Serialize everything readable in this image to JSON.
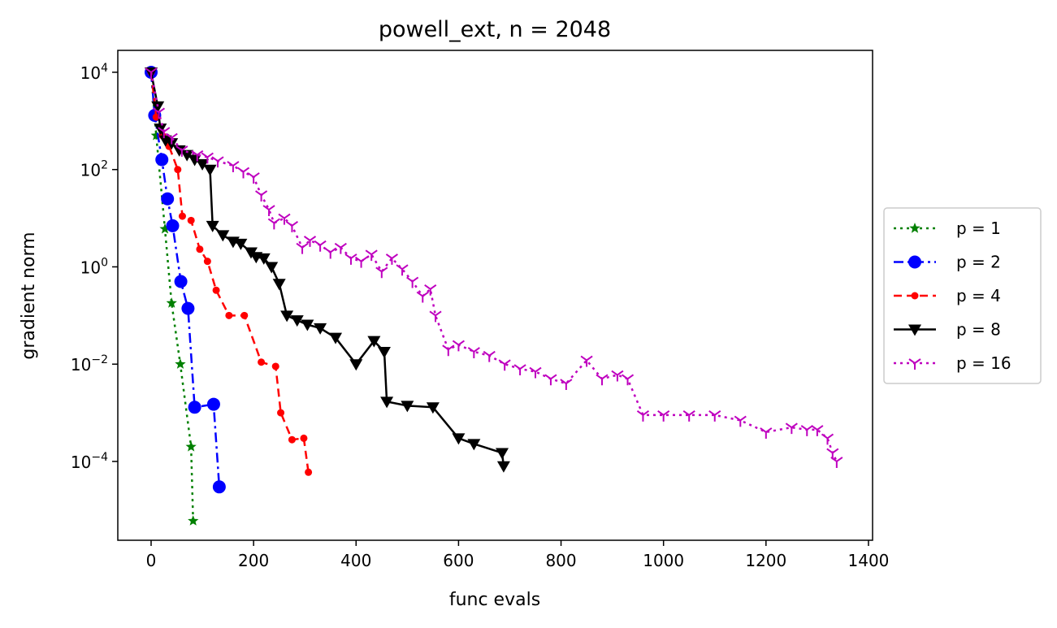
{
  "chart_data": {
    "type": "line",
    "title": "powell_ext, n = 2048",
    "xlabel": "func evals",
    "ylabel": "gradient norm",
    "xlim": [
      -65,
      1408
    ],
    "ylim_log10": [
      -5.62,
      4.45
    ],
    "yscale": "log",
    "grid": false,
    "legend_placement": "right-outside",
    "x_ticks": [
      {
        "value": 0,
        "label": "0"
      },
      {
        "value": 200,
        "label": "200"
      },
      {
        "value": 400,
        "label": "400"
      },
      {
        "value": 600,
        "label": "600"
      },
      {
        "value": 800,
        "label": "800"
      },
      {
        "value": 1000,
        "label": "1000"
      },
      {
        "value": 1200,
        "label": "1200"
      },
      {
        "value": 1400,
        "label": "1400"
      }
    ],
    "y_ticks": [
      {
        "exp": 4,
        "base": "10",
        "sup": "4"
      },
      {
        "exp": 2,
        "base": "10",
        "sup": "2"
      },
      {
        "exp": 0,
        "base": "10",
        "sup": "0"
      },
      {
        "exp": -2,
        "base": "10",
        "sup": "−2"
      },
      {
        "exp": -4,
        "base": "10",
        "sup": "−4"
      }
    ],
    "series": [
      {
        "name": "p = 1",
        "color": "#008000",
        "dash": "dotted",
        "marker": "star",
        "points": [
          [
            0,
            10000
          ],
          [
            10,
            500
          ],
          [
            27,
            6
          ],
          [
            40,
            0.18
          ],
          [
            57,
            0.01
          ],
          [
            78,
            0.0002
          ],
          [
            82,
            6e-06
          ]
        ]
      },
      {
        "name": "p = 2",
        "color": "#0000ff",
        "dash": "dashdot",
        "marker": "circle",
        "points": [
          [
            0,
            10000
          ],
          [
            7,
            1300
          ],
          [
            21,
            160
          ],
          [
            32,
            25
          ],
          [
            42,
            7
          ],
          [
            58,
            0.5
          ],
          [
            72,
            0.14
          ],
          [
            85,
            0.0013
          ],
          [
            122,
            0.0015
          ],
          [
            133,
            3e-05
          ]
        ]
      },
      {
        "name": "p = 4",
        "color": "#ff0000",
        "dash": "dashed",
        "marker": "dot",
        "points": [
          [
            0,
            10000
          ],
          [
            10,
            1200
          ],
          [
            22,
            500
          ],
          [
            35,
            300
          ],
          [
            52,
            100
          ],
          [
            61,
            11
          ],
          [
            78,
            9
          ],
          [
            95,
            2.3
          ],
          [
            110,
            1.3
          ],
          [
            127,
            0.33
          ],
          [
            152,
            0.1
          ],
          [
            182,
            0.1
          ],
          [
            215,
            0.011
          ],
          [
            243,
            0.009
          ],
          [
            253,
            0.001
          ],
          [
            275,
            0.00028
          ],
          [
            298,
            0.0003
          ],
          [
            307,
            6e-05
          ]
        ]
      },
      {
        "name": "p = 8",
        "color": "#000000",
        "dash": "solid",
        "marker": "triangle-down",
        "points": [
          [
            0,
            10000
          ],
          [
            13,
            2000
          ],
          [
            18,
            700
          ],
          [
            28,
            400
          ],
          [
            40,
            350
          ],
          [
            55,
            250
          ],
          [
            70,
            200
          ],
          [
            85,
            160
          ],
          [
            100,
            130
          ],
          [
            115,
            100
          ],
          [
            120,
            7
          ],
          [
            140,
            4.5
          ],
          [
            160,
            3.3
          ],
          [
            175,
            3
          ],
          [
            195,
            2
          ],
          [
            205,
            1.6
          ],
          [
            220,
            1.5
          ],
          [
            235,
            1
          ],
          [
            250,
            0.45
          ],
          [
            265,
            0.1
          ],
          [
            285,
            0.08
          ],
          [
            305,
            0.065
          ],
          [
            330,
            0.055
          ],
          [
            360,
            0.035
          ],
          [
            400,
            0.01
          ],
          [
            435,
            0.03
          ],
          [
            455,
            0.018
          ],
          [
            460,
            0.0017
          ],
          [
            500,
            0.0014
          ],
          [
            550,
            0.0013
          ],
          [
            600,
            0.0003
          ],
          [
            630,
            0.00023
          ],
          [
            685,
            0.00015
          ],
          [
            688,
            8e-05
          ]
        ]
      },
      {
        "name": "p = 16",
        "color": "#bf00bf",
        "dash": "dotted",
        "marker": "tri-down",
        "points": [
          [
            0,
            10000
          ],
          [
            15,
            1500
          ],
          [
            25,
            600
          ],
          [
            40,
            450
          ],
          [
            60,
            250
          ],
          [
            90,
            200
          ],
          [
            110,
            180
          ],
          [
            130,
            150
          ],
          [
            160,
            120
          ],
          [
            180,
            90
          ],
          [
            200,
            70
          ],
          [
            215,
            30
          ],
          [
            230,
            15
          ],
          [
            240,
            8
          ],
          [
            260,
            10
          ],
          [
            275,
            7
          ],
          [
            295,
            2.5
          ],
          [
            310,
            3.5
          ],
          [
            330,
            2.8
          ],
          [
            350,
            2
          ],
          [
            370,
            2.5
          ],
          [
            390,
            1.5
          ],
          [
            410,
            1.3
          ],
          [
            430,
            1.8
          ],
          [
            450,
            0.8
          ],
          [
            470,
            1.5
          ],
          [
            490,
            0.9
          ],
          [
            510,
            0.5
          ],
          [
            530,
            0.25
          ],
          [
            545,
            0.35
          ],
          [
            555,
            0.1
          ],
          [
            580,
            0.02
          ],
          [
            600,
            0.025
          ],
          [
            630,
            0.018
          ],
          [
            660,
            0.015
          ],
          [
            690,
            0.01
          ],
          [
            720,
            0.008
          ],
          [
            750,
            0.007
          ],
          [
            780,
            0.005
          ],
          [
            810,
            0.004
          ],
          [
            850,
            0.012
          ],
          [
            880,
            0.005
          ],
          [
            910,
            0.006
          ],
          [
            930,
            0.005
          ],
          [
            960,
            0.0009
          ],
          [
            1000,
            0.0009
          ],
          [
            1050,
            0.0009
          ],
          [
            1100,
            0.0009
          ],
          [
            1150,
            0.0007
          ],
          [
            1200,
            0.0004
          ],
          [
            1250,
            0.0005
          ],
          [
            1280,
            0.00045
          ],
          [
            1300,
            0.00045
          ],
          [
            1320,
            0.0003
          ],
          [
            1330,
            0.00015
          ],
          [
            1338,
            0.0001
          ]
        ]
      }
    ]
  }
}
